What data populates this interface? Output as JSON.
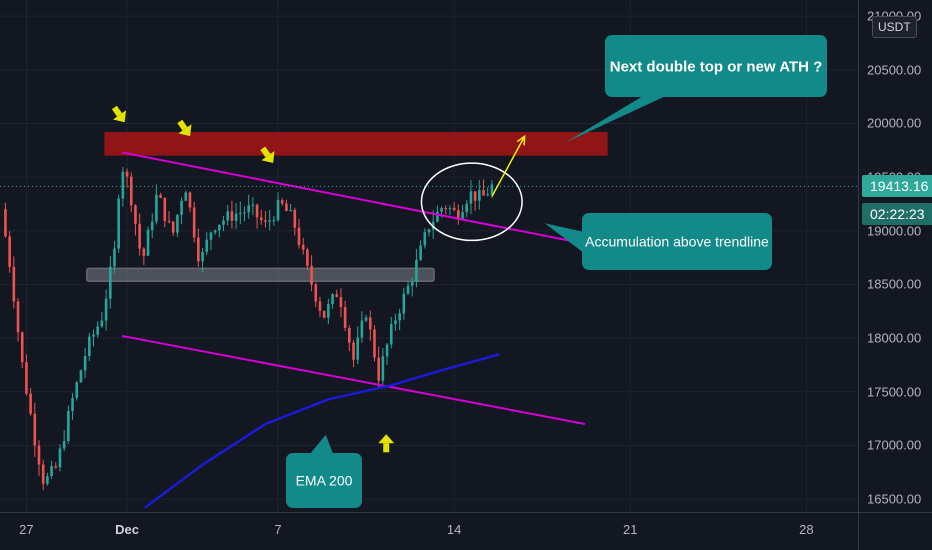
{
  "chart_data": {
    "type": "candlestick",
    "symbol_currency": "USDT",
    "price_axis": {
      "ticks": [
        "16500.00",
        "17000.00",
        "17500.00",
        "18000.00",
        "18500.00",
        "19000.00",
        "19500.00",
        "20000.00",
        "20500.00",
        "21000.00"
      ],
      "tick_values": [
        16500,
        17000,
        17500,
        18000,
        18500,
        19000,
        19500,
        20000,
        20500,
        21000
      ],
      "ylim": [
        16380,
        21150
      ]
    },
    "time_axis": {
      "ticks": [
        {
          "label": "27",
          "day": 0,
          "bold": false
        },
        {
          "label": "Dec",
          "day": 4,
          "bold": true
        },
        {
          "label": "7",
          "day": 10,
          "bold": false
        },
        {
          "label": "14",
          "day": 17,
          "bold": false
        },
        {
          "label": "21",
          "day": 24,
          "bold": false
        },
        {
          "label": "28",
          "day": 31,
          "bold": false
        }
      ],
      "xlim": [
        -1.05,
        33.05
      ],
      "unit": "days since Nov 27"
    },
    "last_price": "19413.16",
    "last_price_value": 19413.16,
    "countdown": "02:22:23",
    "colors": {
      "background": "#131722",
      "up": "#26a69a",
      "down": "#ef5350",
      "trendline": "#d500d5",
      "ema": "#1b1bd8",
      "resistance_zone": "#a31515",
      "support_zone": "#9598a1",
      "callout": "#138a8a",
      "annotation_marker": "#e3e300",
      "projection_arrow": "#f5f500",
      "price_line": "#2fa99a"
    },
    "anchors": [
      {
        "day": -1.0,
        "price": 19200
      },
      {
        "day": -0.6,
        "price": 18600
      },
      {
        "day": -0.2,
        "price": 17800
      },
      {
        "day": 0.3,
        "price": 17100
      },
      {
        "day": 0.7,
        "price": 16650
      },
      {
        "day": 1.2,
        "price": 16800
      },
      {
        "day": 1.8,
        "price": 17400
      },
      {
        "day": 2.4,
        "price": 17900
      },
      {
        "day": 3.0,
        "price": 18200
      },
      {
        "day": 3.5,
        "price": 18800
      },
      {
        "day": 3.75,
        "price": 19650
      },
      {
        "day": 4.1,
        "price": 19400
      },
      {
        "day": 4.6,
        "price": 18700
      },
      {
        "day": 5.2,
        "price": 19350
      },
      {
        "day": 5.8,
        "price": 18950
      },
      {
        "day": 6.3,
        "price": 19450
      },
      {
        "day": 6.9,
        "price": 18700
      },
      {
        "day": 7.4,
        "price": 19050
      },
      {
        "day": 8.2,
        "price": 19150
      },
      {
        "day": 8.9,
        "price": 19200
      },
      {
        "day": 9.5,
        "price": 19050
      },
      {
        "day": 10.1,
        "price": 19250
      },
      {
        "day": 10.6,
        "price": 19100
      },
      {
        "day": 11.2,
        "price": 18600
      },
      {
        "day": 11.8,
        "price": 18200
      },
      {
        "day": 12.4,
        "price": 18450
      },
      {
        "day": 13.0,
        "price": 17800
      },
      {
        "day": 13.5,
        "price": 18250
      },
      {
        "day": 14.0,
        "price": 17650
      },
      {
        "day": 14.6,
        "price": 18150
      },
      {
        "day": 15.3,
        "price": 18550
      },
      {
        "day": 16.0,
        "price": 19050
      },
      {
        "day": 16.6,
        "price": 19250
      },
      {
        "day": 17.1,
        "price": 19150
      },
      {
        "day": 17.6,
        "price": 19350
      },
      {
        "day": 18.1,
        "price": 19300
      },
      {
        "day": 18.5,
        "price": 19413
      }
    ],
    "resistance_zone": {
      "day_from": 3.1,
      "day_to": 23.1,
      "price_low": 19700,
      "price_high": 19920
    },
    "support_zone": {
      "day_from": 2.4,
      "day_to": 16.2,
      "price_low": 18530,
      "price_high": 18650
    },
    "trendlines": [
      {
        "name": "upper-trendline",
        "from": {
          "day": 3.8,
          "price": 19730
        },
        "to": {
          "day": 22.2,
          "price": 18880
        }
      },
      {
        "name": "lower-trendline",
        "from": {
          "day": 3.8,
          "price": 18020
        },
        "to": {
          "day": 22.2,
          "price": 17200
        }
      }
    ],
    "ema_200": [
      {
        "day": 4.7,
        "price": 16420
      },
      {
        "day": 7.0,
        "price": 16820
      },
      {
        "day": 9.5,
        "price": 17200
      },
      {
        "day": 12.0,
        "price": 17430
      },
      {
        "day": 14.5,
        "price": 17560
      },
      {
        "day": 16.5,
        "price": 17700
      },
      {
        "day": 18.8,
        "price": 17850
      }
    ],
    "projection_arrow": {
      "from": {
        "day": 18.5,
        "price": 19320
      },
      "to": {
        "day": 19.8,
        "price": 19880
      }
    },
    "ellipse": {
      "center_day": 17.7,
      "center_price": 19270,
      "width_days": 4.0,
      "height_price": 720
    },
    "top_markers": [
      {
        "day": 3.7,
        "price": 20080
      },
      {
        "day": 6.3,
        "price": 19950
      },
      {
        "day": 9.6,
        "price": 19700
      }
    ],
    "bottom_marker": {
      "day": 14.3,
      "price": 17020
    },
    "annotations": [
      {
        "text": "Next double top or new ATH ?",
        "pointer": {
          "day": 21.4,
          "price": 19820
        }
      },
      {
        "text": "Accumulation above trendline",
        "pointer": {
          "day": 20.6,
          "price": 19070
        }
      },
      {
        "text": "EMA 200",
        "pointer": {
          "day": 11.9,
          "price": 17100
        }
      }
    ]
  }
}
